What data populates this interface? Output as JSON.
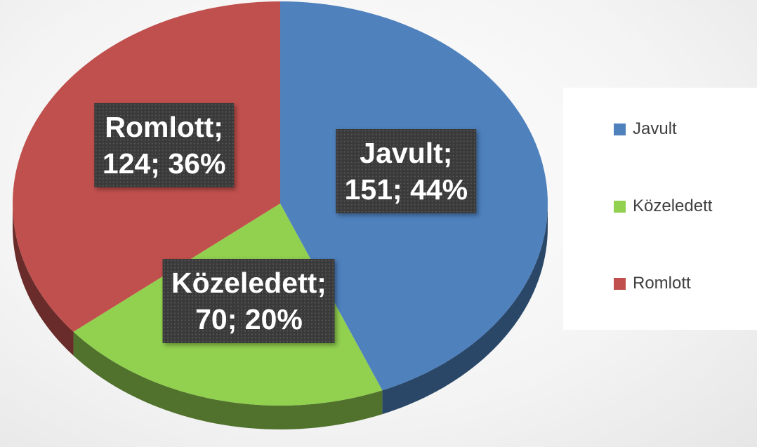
{
  "chart_data": {
    "type": "pie3d",
    "categories": [
      "Javult",
      "Közeledett",
      "Romlott"
    ],
    "values": [
      151,
      70,
      124
    ],
    "value_labels": [
      "Javult;\n151; 44%",
      "Közeledett;\n70; 20%",
      "Romlott;\n124; 36%"
    ],
    "colors": [
      "#4f81bd",
      "#92d050",
      "#c0504d"
    ],
    "legend": "right"
  }
}
